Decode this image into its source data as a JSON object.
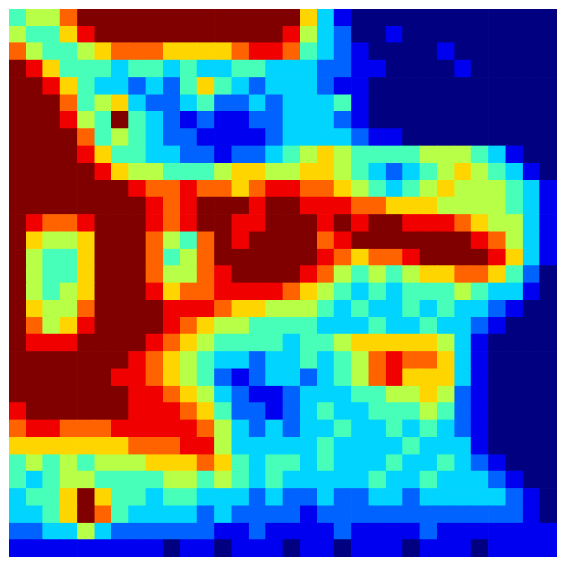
{
  "chart_data": {
    "type": "heatmap",
    "tick_labels": false,
    "grid": false,
    "zlim": [
      0,
      9
    ],
    "cells": [
      [
        4,
        5,
        5,
        7,
        9,
        9,
        9,
        9,
        9,
        9,
        9,
        9,
        9,
        9,
        9,
        9,
        9,
        6,
        3,
        1,
        0,
        0,
        0,
        0,
        0,
        0,
        0,
        0,
        0,
        0,
        0,
        0
      ],
      [
        5,
        4,
        4,
        6,
        8,
        9,
        9,
        9,
        9,
        9,
        9,
        9,
        9,
        9,
        9,
        9,
        8,
        5,
        3,
        2,
        0,
        0,
        1,
        0,
        0,
        0,
        0,
        0,
        0,
        0,
        0,
        0
      ],
      [
        7,
        5,
        4,
        4,
        5,
        6,
        7,
        7,
        7,
        6,
        6,
        6,
        6,
        7,
        8,
        8,
        7,
        4,
        3,
        2,
        1,
        0,
        0,
        0,
        0,
        1,
        0,
        0,
        0,
        0,
        0,
        0
      ],
      [
        9,
        8,
        6,
        4,
        4,
        4,
        3,
        4,
        4,
        3,
        4,
        3,
        3,
        4,
        4,
        3,
        3,
        3,
        2,
        2,
        1,
        1,
        0,
        0,
        0,
        0,
        1,
        0,
        0,
        0,
        0,
        0
      ],
      [
        9,
        9,
        8,
        6,
        4,
        3,
        3,
        2,
        3,
        2,
        4,
        6,
        4,
        3,
        2,
        3,
        3,
        3,
        2,
        1,
        1,
        0,
        0,
        0,
        0,
        0,
        0,
        0,
        0,
        0,
        0,
        0
      ],
      [
        9,
        9,
        9,
        7,
        4,
        5,
        6,
        3,
        2,
        2,
        3,
        4,
        2,
        2,
        3,
        2,
        3,
        3,
        3,
        4,
        1,
        0,
        0,
        0,
        0,
        0,
        0,
        0,
        0,
        0,
        0,
        0
      ],
      [
        9,
        9,
        9,
        8,
        5,
        4,
        9,
        4,
        3,
        2,
        1,
        2,
        1,
        1,
        2,
        2,
        3,
        3,
        3,
        2,
        1,
        0,
        0,
        0,
        0,
        0,
        0,
        0,
        0,
        0,
        0,
        0
      ],
      [
        9,
        9,
        9,
        9,
        7,
        4,
        5,
        4,
        3,
        2,
        2,
        1,
        1,
        1,
        1,
        2,
        3,
        3,
        3,
        3,
        2,
        1,
        1,
        0,
        0,
        0,
        0,
        0,
        0,
        0,
        0,
        0
      ],
      [
        9,
        9,
        9,
        9,
        8,
        6,
        4,
        4,
        3,
        3,
        2,
        2,
        1,
        2,
        2,
        3,
        4,
        5,
        6,
        5,
        4,
        4,
        4,
        4,
        5,
        5,
        5,
        4,
        3,
        1,
        0,
        0
      ],
      [
        9,
        9,
        9,
        9,
        9,
        8,
        6,
        5,
        5,
        4,
        4,
        4,
        5,
        6,
        6,
        5,
        5,
        6,
        6,
        5,
        4,
        3,
        2,
        3,
        4,
        5,
        6,
        5,
        4,
        3,
        1,
        0
      ],
      [
        9,
        9,
        9,
        9,
        9,
        9,
        9,
        8,
        7,
        7,
        8,
        7,
        7,
        6,
        7,
        8,
        8,
        7,
        7,
        6,
        5,
        4,
        3,
        4,
        5,
        6,
        5,
        5,
        5,
        4,
        3,
        1
      ],
      [
        9,
        9,
        9,
        9,
        9,
        9,
        9,
        9,
        8,
        7,
        8,
        9,
        9,
        9,
        8,
        9,
        9,
        8,
        8,
        8,
        7,
        7,
        6,
        6,
        6,
        5,
        5,
        5,
        5,
        4,
        3,
        1
      ],
      [
        9,
        8,
        7,
        7,
        8,
        9,
        9,
        9,
        8,
        7,
        8,
        9,
        9,
        8,
        8,
        9,
        9,
        9,
        8,
        9,
        8,
        9,
        9,
        8,
        8,
        8,
        7,
        6,
        5,
        5,
        3,
        1
      ],
      [
        9,
        6,
        5,
        5,
        6,
        9,
        9,
        9,
        7,
        5,
        4,
        7,
        9,
        8,
        9,
        9,
        9,
        9,
        7,
        8,
        9,
        9,
        9,
        9,
        9,
        9,
        9,
        8,
        7,
        5,
        3,
        1
      ],
      [
        9,
        5,
        4,
        4,
        6,
        9,
        9,
        9,
        7,
        4,
        5,
        7,
        9,
        9,
        9,
        9,
        9,
        9,
        8,
        7,
        6,
        7,
        7,
        8,
        9,
        9,
        9,
        9,
        8,
        6,
        3,
        1
      ],
      [
        9,
        5,
        4,
        4,
        6,
        9,
        9,
        9,
        7,
        5,
        5,
        7,
        8,
        9,
        9,
        9,
        9,
        8,
        7,
        5,
        4,
        5,
        4,
        5,
        6,
        6,
        7,
        7,
        6,
        4,
        2,
        0
      ],
      [
        9,
        5,
        4,
        5,
        6,
        9,
        9,
        9,
        8,
        6,
        7,
        7,
        8,
        8,
        8,
        8,
        7,
        6,
        5,
        4,
        3,
        4,
        3,
        4,
        4,
        4,
        5,
        4,
        3,
        3,
        1,
        0
      ],
      [
        9,
        6,
        5,
        5,
        7,
        9,
        9,
        9,
        9,
        8,
        8,
        8,
        7,
        6,
        6,
        5,
        5,
        5,
        4,
        3,
        4,
        3,
        3,
        4,
        3,
        4,
        3,
        3,
        2,
        1,
        0,
        0
      ],
      [
        9,
        7,
        5,
        6,
        8,
        9,
        9,
        9,
        9,
        8,
        7,
        6,
        5,
        5,
        4,
        4,
        4,
        4,
        3,
        3,
        3,
        4,
        3,
        3,
        4,
        3,
        3,
        2,
        1,
        0,
        0,
        0
      ],
      [
        9,
        8,
        8,
        8,
        9,
        9,
        9,
        9,
        8,
        7,
        6,
        5,
        4,
        4,
        4,
        4,
        3,
        4,
        4,
        5,
        6,
        6,
        6,
        6,
        6,
        5,
        3,
        1,
        0,
        0,
        0,
        0
      ],
      [
        9,
        9,
        9,
        9,
        9,
        9,
        9,
        8,
        7,
        6,
        5,
        4,
        3,
        3,
        2,
        3,
        3,
        4,
        3,
        4,
        5,
        7,
        8,
        7,
        7,
        6,
        3,
        1,
        0,
        0,
        0,
        0
      ],
      [
        9,
        9,
        9,
        9,
        9,
        9,
        8,
        8,
        7,
        6,
        5,
        4,
        2,
        1,
        2,
        3,
        3,
        2,
        3,
        4,
        5,
        7,
        8,
        6,
        6,
        6,
        3,
        1,
        0,
        0,
        0,
        0
      ],
      [
        9,
        9,
        9,
        9,
        9,
        9,
        9,
        8,
        8,
        7,
        6,
        5,
        3,
        2,
        1,
        1,
        2,
        3,
        3,
        3,
        4,
        4,
        5,
        5,
        6,
        5,
        2,
        1,
        0,
        0,
        0,
        0
      ],
      [
        8,
        9,
        9,
        9,
        9,
        9,
        9,
        8,
        8,
        8,
        7,
        6,
        4,
        2,
        2,
        1,
        2,
        3,
        4,
        3,
        3,
        4,
        4,
        4,
        5,
        4,
        2,
        1,
        0,
        0,
        0,
        0
      ],
      [
        7,
        8,
        8,
        7,
        7,
        7,
        8,
        8,
        8,
        8,
        8,
        7,
        5,
        3,
        2,
        3,
        2,
        3,
        3,
        4,
        3,
        3,
        4,
        3,
        4,
        3,
        2,
        1,
        0,
        0,
        0,
        0
      ],
      [
        6,
        6,
        6,
        6,
        6,
        6,
        6,
        7,
        7,
        7,
        8,
        8,
        5,
        3,
        3,
        3,
        3,
        3,
        4,
        3,
        3,
        3,
        3,
        4,
        3,
        3,
        3,
        1,
        0,
        0,
        0,
        0
      ],
      [
        4,
        5,
        4,
        5,
        4,
        5,
        5,
        5,
        6,
        6,
        6,
        7,
        6,
        4,
        3,
        4,
        4,
        3,
        4,
        3,
        3,
        3,
        4,
        3,
        3,
        4,
        3,
        2,
        1,
        0,
        0,
        0
      ],
      [
        4,
        3,
        4,
        5,
        5,
        4,
        4,
        4,
        4,
        5,
        5,
        4,
        5,
        4,
        3,
        4,
        3,
        3,
        3,
        3,
        3,
        4,
        3,
        3,
        4,
        3,
        3,
        3,
        2,
        1,
        0,
        0
      ],
      [
        3,
        4,
        4,
        6,
        9,
        6,
        4,
        4,
        3,
        4,
        4,
        3,
        3,
        3,
        2,
        3,
        2,
        2,
        3,
        2,
        2,
        3,
        3,
        2,
        3,
        3,
        3,
        3,
        3,
        2,
        1,
        0
      ],
      [
        3,
        3,
        4,
        6,
        9,
        7,
        4,
        3,
        3,
        3,
        3,
        2,
        3,
        2,
        2,
        2,
        2,
        1,
        2,
        2,
        2,
        2,
        2,
        2,
        2,
        2,
        2,
        2,
        2,
        2,
        1,
        0
      ],
      [
        2,
        2,
        3,
        3,
        5,
        3,
        2,
        2,
        2,
        2,
        2,
        2,
        1,
        1,
        2,
        1,
        1,
        1,
        1,
        2,
        1,
        1,
        1,
        1,
        2,
        1,
        1,
        1,
        1,
        1,
        1,
        1
      ],
      [
        1,
        1,
        1,
        1,
        1,
        1,
        1,
        1,
        1,
        0,
        1,
        1,
        0,
        1,
        1,
        1,
        0,
        1,
        1,
        0,
        1,
        1,
        1,
        0,
        1,
        1,
        1,
        0,
        1,
        1,
        1,
        1
      ]
    ]
  }
}
